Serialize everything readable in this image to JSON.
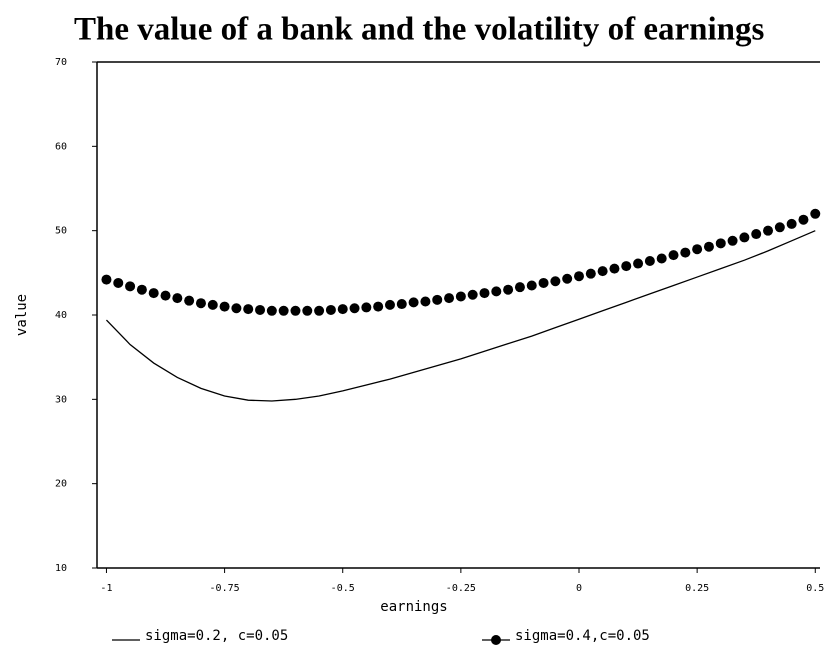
{
  "chart_data": {
    "type": "line",
    "title": "The value of a bank and the volatility of earnings",
    "xlabel": "earnings",
    "ylabel": "value",
    "xlim": [
      -1.02,
      0.51
    ],
    "ylim": [
      10,
      70
    ],
    "xticks": [
      -1,
      -0.75,
      -0.5,
      -0.25,
      0,
      0.25,
      0.5
    ],
    "yticks": [
      10,
      20,
      30,
      40,
      50,
      60,
      70
    ],
    "legend": "bottom",
    "series": [
      {
        "name": "sigma=0.2, c=0.05",
        "color": "#000000",
        "marker": "none",
        "x": [
          -1,
          -0.95,
          -0.9,
          -0.85,
          -0.8,
          -0.75,
          -0.7,
          -0.65,
          -0.6,
          -0.55,
          -0.5,
          -0.45,
          -0.4,
          -0.35,
          -0.3,
          -0.25,
          -0.2,
          -0.15,
          -0.1,
          -0.05,
          0,
          0.05,
          0.1,
          0.15,
          0.2,
          0.25,
          0.3,
          0.35,
          0.4,
          0.45,
          0.5
        ],
        "values": [
          39.4,
          36.5,
          34.3,
          32.6,
          31.3,
          30.4,
          29.9,
          29.8,
          30.0,
          30.4,
          31.0,
          31.7,
          32.4,
          33.2,
          34.0,
          34.8,
          35.7,
          36.6,
          37.5,
          38.5,
          39.5,
          40.5,
          41.5,
          42.5,
          43.5,
          44.5,
          45.5,
          46.5,
          47.6,
          48.8,
          50.0
        ]
      },
      {
        "name": "sigma=0.4,c=0.05",
        "color": "#000000",
        "marker": "circle",
        "x": [
          -1,
          -0.975,
          -0.95,
          -0.925,
          -0.9,
          -0.875,
          -0.85,
          -0.825,
          -0.8,
          -0.775,
          -0.75,
          -0.725,
          -0.7,
          -0.675,
          -0.65,
          -0.625,
          -0.6,
          -0.575,
          -0.55,
          -0.525,
          -0.5,
          -0.475,
          -0.45,
          -0.425,
          -0.4,
          -0.375,
          -0.35,
          -0.325,
          -0.3,
          -0.275,
          -0.25,
          -0.225,
          -0.2,
          -0.175,
          -0.15,
          -0.125,
          -0.1,
          -0.075,
          -0.05,
          -0.025,
          0,
          0.025,
          0.05,
          0.075,
          0.1,
          0.125,
          0.15,
          0.175,
          0.2,
          0.225,
          0.25,
          0.275,
          0.3,
          0.325,
          0.35,
          0.375,
          0.4,
          0.425,
          0.45,
          0.475,
          0.5
        ],
        "values": [
          44.2,
          43.8,
          43.4,
          43.0,
          42.6,
          42.3,
          42.0,
          41.7,
          41.4,
          41.2,
          41.0,
          40.8,
          40.7,
          40.6,
          40.5,
          40.5,
          40.5,
          40.5,
          40.5,
          40.6,
          40.7,
          40.8,
          40.9,
          41.0,
          41.2,
          41.3,
          41.5,
          41.6,
          41.8,
          42.0,
          42.2,
          42.4,
          42.6,
          42.8,
          43.0,
          43.3,
          43.5,
          43.8,
          44.0,
          44.3,
          44.6,
          44.9,
          45.2,
          45.5,
          45.8,
          46.1,
          46.4,
          46.7,
          47.1,
          47.4,
          47.8,
          48.1,
          48.5,
          48.8,
          49.2,
          49.6,
          50.0,
          50.4,
          50.8,
          51.3,
          52.0
        ]
      }
    ]
  }
}
